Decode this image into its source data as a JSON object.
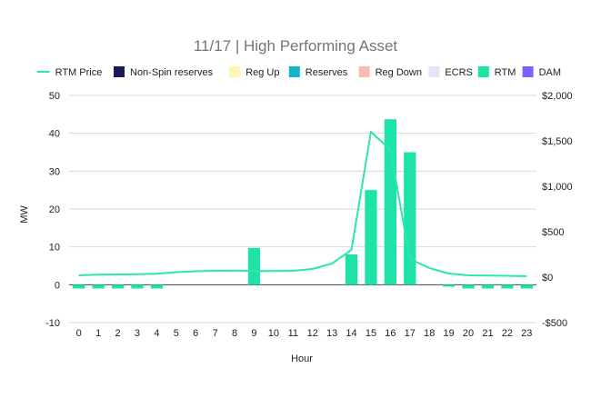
{
  "chart_data": {
    "type": "bar",
    "title": "11/17 | High Performing Asset",
    "xlabel": "Hour",
    "ylabel": "MW",
    "ylim": [
      -10,
      50
    ],
    "y_ticks": [
      -10,
      0,
      10,
      20,
      30,
      40,
      50
    ],
    "y2lim": [
      -500,
      2000
    ],
    "y2_ticks": [
      -500,
      0,
      500,
      1000,
      1500,
      2000
    ],
    "y2_tick_labels": [
      "-$500",
      "$0",
      "$500",
      "$1,000",
      "$1,500",
      "$2,000"
    ],
    "categories": [
      "0",
      "1",
      "2",
      "3",
      "4",
      "5",
      "6",
      "7",
      "8",
      "9",
      "10",
      "11",
      "12",
      "13",
      "14",
      "15",
      "16",
      "17",
      "18",
      "19",
      "20",
      "21",
      "22",
      "23"
    ],
    "grid": true,
    "legend_position": "top",
    "legend": [
      {
        "name": "RTM Price",
        "kind": "line",
        "color": "#2ee6ad"
      },
      {
        "name": "Non-Spin reserves",
        "kind": "box",
        "color": "#1b1a5c"
      },
      {
        "name": "Reg Up",
        "kind": "box",
        "color": "#fff6b3"
      },
      {
        "name": "Reserves",
        "kind": "box",
        "color": "#12b5cb"
      },
      {
        "name": "Reg Down",
        "kind": "box",
        "color": "#f7bcb3"
      },
      {
        "name": "ECRS",
        "kind": "box",
        "color": "#e3e3fb"
      },
      {
        "name": "RTM",
        "kind": "box",
        "color": "#1de3a8"
      },
      {
        "name": "DAM",
        "kind": "box",
        "color": "#7b61ff"
      }
    ],
    "series": [
      {
        "name": "RTM",
        "axis": "left",
        "type": "bar",
        "color": "#1de3a8",
        "values": [
          -1,
          -1,
          -1,
          -1,
          -1,
          0,
          0,
          0,
          0,
          9.7,
          0,
          0,
          0,
          0,
          8,
          25,
          43.7,
          35,
          0,
          -0.5,
          -1,
          -1,
          -1,
          -1
        ]
      },
      {
        "name": "RTM Price",
        "axis": "right",
        "type": "line",
        "color": "#2ee6ad",
        "values": [
          20,
          28,
          30,
          32,
          38,
          55,
          65,
          70,
          72,
          68,
          68,
          70,
          90,
          150,
          300,
          1600,
          1400,
          200,
          100,
          40,
          20,
          18,
          15,
          10
        ]
      }
    ]
  }
}
